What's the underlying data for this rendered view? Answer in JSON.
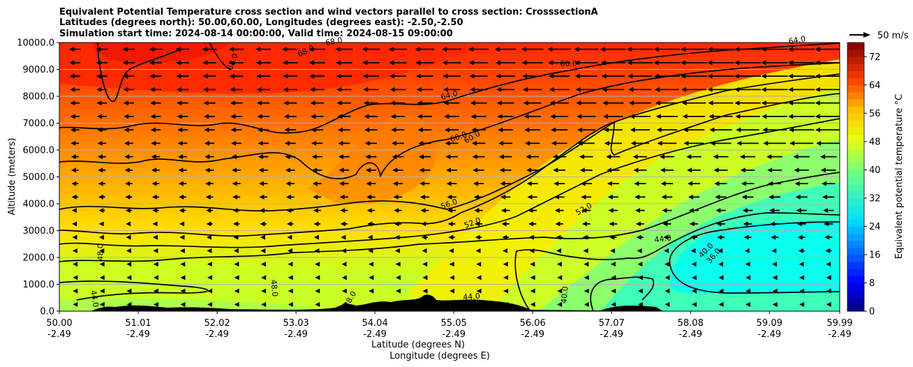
{
  "chart_data": {
    "type": "heatmap",
    "title_lines": [
      "Equivalent Potential Temperature cross section and wind vectors parallel to cross section: CrosssectionA",
      "Latitudes (degrees north): 50.00,60.00, Longitudes (degrees east): -2.50,-2.50",
      "Simulation start time: 2024-08-14 00:00:00, Valid time: 2024-08-15 09:00:00"
    ],
    "ylabel": "Altitude (meters)",
    "xlabel": "Latitude (degrees N)",
    "xlabel2": "Longitude (degrees E)",
    "ylim": [
      0,
      10000
    ],
    "xlim": [
      50.0,
      59.99
    ],
    "y_ticks": [
      "0.0",
      "1000.0",
      "2000.0",
      "3000.0",
      "4000.0",
      "5000.0",
      "6000.0",
      "7000.0",
      "8000.0",
      "9000.0",
      "10000.0"
    ],
    "y_tick_values": [
      0,
      1000,
      2000,
      3000,
      4000,
      5000,
      6000,
      7000,
      8000,
      9000,
      10000
    ],
    "x_tick_values": [
      50.0,
      51.01,
      52.02,
      53.03,
      54.04,
      55.05,
      56.06,
      57.07,
      58.08,
      59.09,
      59.99
    ],
    "x_ticks_lat": [
      "50.00",
      "51.01",
      "52.02",
      "53.03",
      "54.04",
      "55.05",
      "56.06",
      "57.07",
      "58.08",
      "59.09",
      "59.99"
    ],
    "x_ticks_lon": [
      "-2.49",
      "-2.49",
      "-2.49",
      "-2.49",
      "-2.49",
      "-2.49",
      "-2.49",
      "-2.49",
      "-2.49",
      "-2.49",
      "-2.49"
    ],
    "colorbar": {
      "label": "Equivalent potential temperature °C",
      "min": 0,
      "max": 76,
      "ticks": [
        "0",
        "8",
        "16",
        "24",
        "32",
        "40",
        "48",
        "56",
        "64",
        "72"
      ],
      "tick_values": [
        0,
        8,
        16,
        24,
        32,
        40,
        48,
        56,
        64,
        72
      ]
    },
    "quiver_key": "50 m/s",
    "contour_labels": [
      {
        "text": "68.0",
        "lat": 52.25,
        "alt": 9250,
        "rot": -70
      },
      {
        "text": "68.0",
        "lat": 53.17,
        "alt": 9600,
        "rot": -25
      },
      {
        "text": "68.0",
        "lat": 53.52,
        "alt": 9950,
        "rot": -10
      },
      {
        "text": "64.0",
        "lat": 55.0,
        "alt": 7950,
        "rot": -15
      },
      {
        "text": "60.0",
        "lat": 55.12,
        "alt": 6400,
        "rot": -20
      },
      {
        "text": "60.0",
        "lat": 55.3,
        "alt": 6400,
        "rot": -30
      },
      {
        "text": "60.0",
        "lat": 56.52,
        "alt": 9120,
        "rot": 0
      },
      {
        "text": "64.0",
        "lat": 59.45,
        "alt": 10000,
        "rot": -10
      },
      {
        "text": "56.0",
        "lat": 55.0,
        "alt": 3900,
        "rot": -20
      },
      {
        "text": "52.0",
        "lat": 55.3,
        "alt": 3200,
        "rot": -20
      },
      {
        "text": "52.0",
        "lat": 56.73,
        "alt": 3720,
        "rot": -30
      },
      {
        "text": "44.0",
        "lat": 57.73,
        "alt": 2600,
        "rot": -8
      },
      {
        "text": "40.0",
        "lat": 58.3,
        "alt": 2200,
        "rot": -45
      },
      {
        "text": "36.0",
        "lat": 58.4,
        "alt": 2000,
        "rot": -50
      },
      {
        "text": "48.0",
        "lat": 50.56,
        "alt": 2200,
        "rot": -90
      },
      {
        "text": "44.0",
        "lat": 50.42,
        "alt": 450,
        "rot": 80
      },
      {
        "text": "48.0",
        "lat": 52.72,
        "alt": 850,
        "rot": 85
      },
      {
        "text": "48.0",
        "lat": 53.75,
        "alt": 400,
        "rot": -60
      },
      {
        "text": "44.0",
        "lat": 55.28,
        "alt": 450,
        "rot": -5
      },
      {
        "text": "40.0",
        "lat": 56.5,
        "alt": 600,
        "rot": -85
      }
    ]
  }
}
